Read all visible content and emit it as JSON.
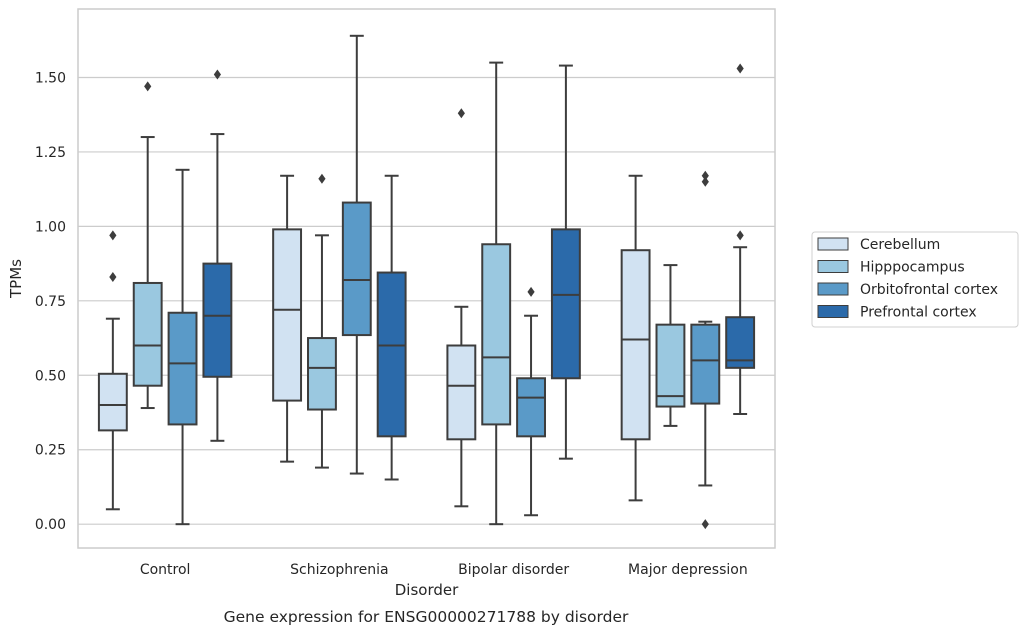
{
  "chart_data": {
    "type": "boxplot",
    "caption": "Gene expression for ENSG00000271788 by disorder",
    "xlabel": "Disorder",
    "ylabel": "TPMs",
    "ylim": [
      -0.08,
      1.73
    ],
    "yticks": [
      0.0,
      0.25,
      0.5,
      0.75,
      1.0,
      1.25,
      1.5
    ],
    "ytick_labels": [
      "0.00",
      "0.25",
      "0.50",
      "0.75",
      "1.00",
      "1.25",
      "1.50"
    ],
    "categories": [
      "Control",
      "Schizophrenia",
      "Bipolar disorder",
      "Major depression"
    ],
    "grid": "horizontal",
    "legend_position": "right",
    "series": [
      {
        "name": "Cerebellum",
        "color": "#d1e2f2",
        "boxes": [
          {
            "whislo": 0.05,
            "q1": 0.315,
            "med": 0.4,
            "q3": 0.505,
            "whishi": 0.69,
            "fliers": [
              0.83,
              0.97
            ]
          },
          {
            "whislo": 0.21,
            "q1": 0.415,
            "med": 0.72,
            "q3": 0.99,
            "whishi": 1.17,
            "fliers": []
          },
          {
            "whislo": 0.06,
            "q1": 0.285,
            "med": 0.465,
            "q3": 0.6,
            "whishi": 0.73,
            "fliers": [
              1.38
            ]
          },
          {
            "whislo": 0.08,
            "q1": 0.285,
            "med": 0.62,
            "q3": 0.92,
            "whishi": 1.17,
            "fliers": []
          }
        ]
      },
      {
        "name": "Hipppocampus",
        "color": "#9ac8e0",
        "boxes": [
          {
            "whislo": 0.39,
            "q1": 0.465,
            "med": 0.6,
            "q3": 0.81,
            "whishi": 1.3,
            "fliers": [
              1.47
            ]
          },
          {
            "whislo": 0.19,
            "q1": 0.385,
            "med": 0.525,
            "q3": 0.625,
            "whishi": 0.97,
            "fliers": [
              1.16
            ]
          },
          {
            "whislo": 0.0,
            "q1": 0.335,
            "med": 0.56,
            "q3": 0.94,
            "whishi": 1.55,
            "fliers": []
          },
          {
            "whislo": 0.33,
            "q1": 0.395,
            "med": 0.43,
            "q3": 0.67,
            "whishi": 0.87,
            "fliers": []
          }
        ]
      },
      {
        "name": "Orbitofrontal cortex",
        "color": "#5a9ac8",
        "boxes": [
          {
            "whislo": 0.0,
            "q1": 0.335,
            "med": 0.54,
            "q3": 0.71,
            "whishi": 1.19,
            "fliers": []
          },
          {
            "whislo": 0.17,
            "q1": 0.635,
            "med": 0.82,
            "q3": 1.08,
            "whishi": 1.64,
            "fliers": []
          },
          {
            "whislo": 0.03,
            "q1": 0.295,
            "med": 0.425,
            "q3": 0.49,
            "whishi": 0.7,
            "fliers": [
              0.78
            ]
          },
          {
            "whislo": 0.13,
            "q1": 0.405,
            "med": 0.55,
            "q3": 0.67,
            "whishi": 0.68,
            "fliers": [
              0.0,
              1.15,
              1.17
            ]
          }
        ]
      },
      {
        "name": "Prefrontal cortex",
        "color": "#2b6aaa",
        "boxes": [
          {
            "whislo": 0.28,
            "q1": 0.495,
            "med": 0.7,
            "q3": 0.875,
            "whishi": 1.31,
            "fliers": [
              1.51
            ]
          },
          {
            "whislo": 0.15,
            "q1": 0.295,
            "med": 0.6,
            "q3": 0.845,
            "whishi": 1.17,
            "fliers": []
          },
          {
            "whislo": 0.22,
            "q1": 0.49,
            "med": 0.77,
            "q3": 0.99,
            "whishi": 1.54,
            "fliers": []
          },
          {
            "whislo": 0.37,
            "q1": 0.525,
            "med": 0.55,
            "q3": 0.695,
            "whishi": 0.93,
            "fliers": [
              0.97,
              1.53
            ]
          }
        ]
      }
    ]
  },
  "colors": {
    "grid": "#cccccc",
    "frame": "#cccccc",
    "box_edge": "#3d3d3d"
  }
}
